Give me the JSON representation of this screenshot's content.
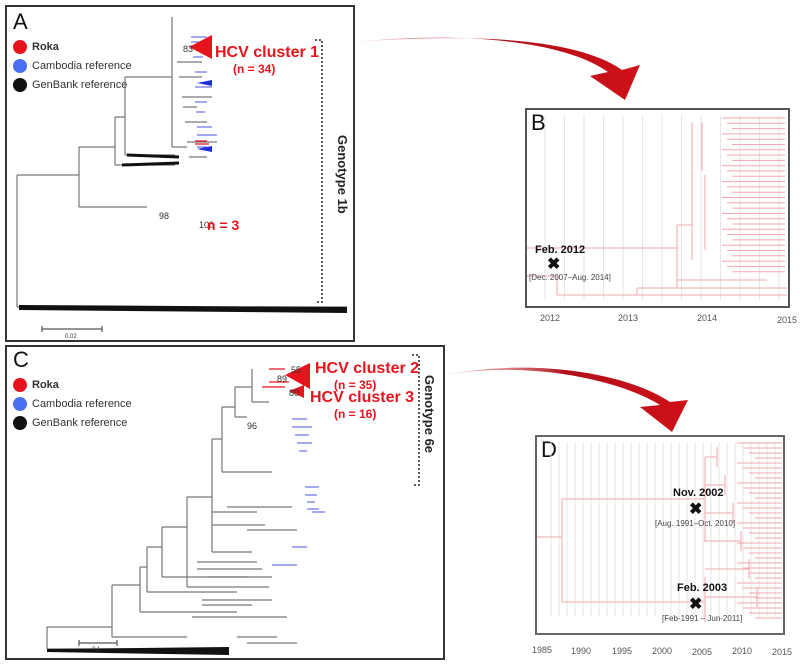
{
  "panels": {
    "A": {
      "label": "A",
      "legend": [
        {
          "label": "Roka",
          "color": "#e8141d"
        },
        {
          "label": "Cambodia reference",
          "color": "#4a6ff0"
        },
        {
          "label": "GenBank reference",
          "color": "#111111"
        }
      ],
      "cluster": {
        "name": "HCV cluster 1",
        "n": "(n = 34)"
      },
      "small_cluster": "n = 3",
      "bootstrap": [
        "83",
        "98",
        "100"
      ],
      "genotype": "Genotype 1b",
      "scale_bar_label": "0.02"
    },
    "B": {
      "label": "B",
      "axis_ticks": [
        "2012",
        "2013",
        "2014",
        "2015"
      ],
      "event": {
        "date": "Feb. 2012",
        "range": "[Dec. 2007–Aug. 2014]"
      }
    },
    "C": {
      "label": "C",
      "legend": [
        {
          "label": "Roka",
          "color": "#e8141d"
        },
        {
          "label": "Cambodia reference",
          "color": "#4a6ff0"
        },
        {
          "label": "GenBank reference",
          "color": "#111111"
        }
      ],
      "clusters": [
        {
          "name": "HCV cluster 2",
          "n": "(n = 35)"
        },
        {
          "name": "HCV cluster 3",
          "n": "(n = 16)"
        }
      ],
      "bootstrap": [
        "55",
        "89",
        "80",
        "96"
      ],
      "genotype": "Genotype 6e",
      "scale_bar_label": "0.1"
    },
    "D": {
      "label": "D",
      "axis_ticks": [
        "1985",
        "1990",
        "1995",
        "2000",
        "2005",
        "2010",
        "2015"
      ],
      "events": [
        {
          "date": "Nov. 2002",
          "range": "[Aug. 1991–Oct. 2010]"
        },
        {
          "date": "Feb. 2003",
          "range": "[Feb-1991 – Jun-2011]"
        }
      ]
    }
  },
  "colors": {
    "roka": "#e8141d",
    "cambodia": "#4a6ff0",
    "genbank": "#111111",
    "arrow": "#b0101a",
    "timetree": "#f2a7ad"
  }
}
